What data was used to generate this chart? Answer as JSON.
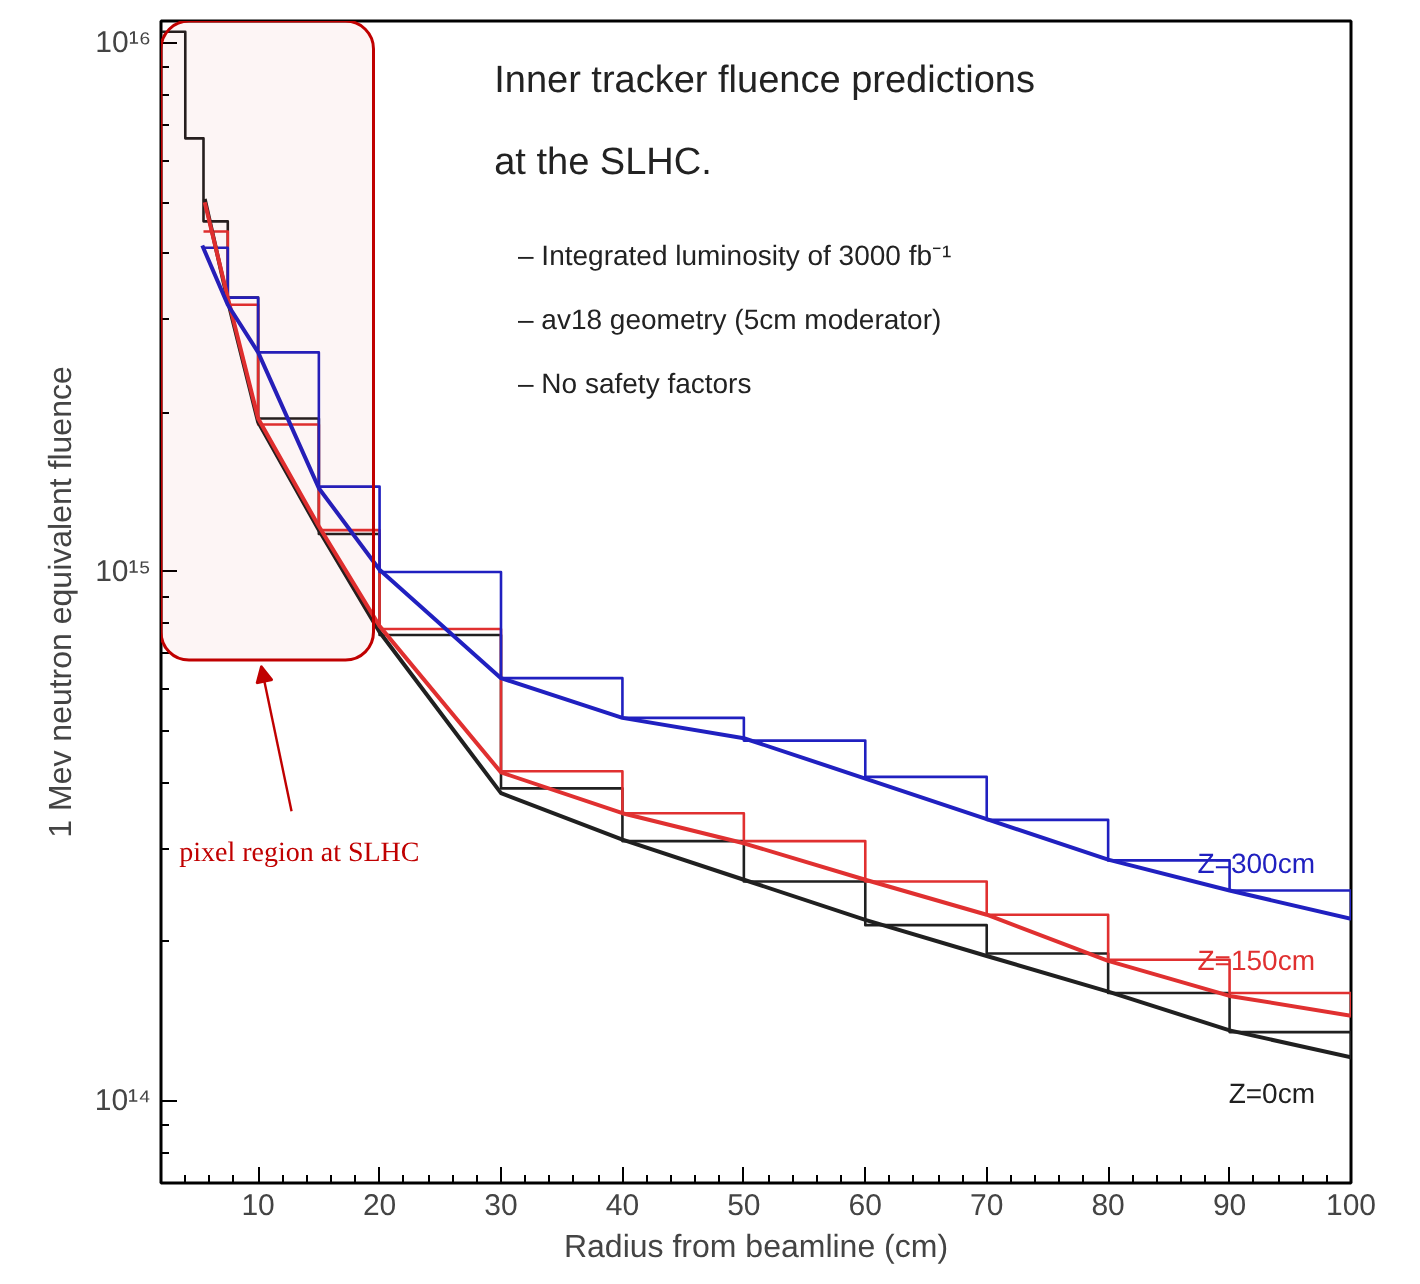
{
  "chart_data": {
    "type": "line",
    "title": "Inner tracker fluence predictions\nat the SLHC.",
    "xlabel": "Radius from beamline (cm)",
    "ylabel": "1 Mev neutron equivalent fluence",
    "annotations": [
      "– Integrated luminosity of 3000 fb⁻¹",
      "– av18 geometry (5cm moderator)",
      "– No safety factors"
    ],
    "log": "y",
    "grid": false,
    "line_style": "solid",
    "marker": "none",
    "xlim": [
      2,
      100
    ],
    "ylim": [
      70000000000000.0,
      1.1e+16
    ],
    "xticks": [
      10,
      20,
      30,
      40,
      50,
      60,
      70,
      80,
      90,
      100
    ],
    "yticks": [
      {
        "value": 100000000000000.0,
        "label": "10¹⁴"
      },
      {
        "value": 1000000000000000.0,
        "label": "10¹⁵"
      },
      {
        "value": 1e+16,
        "label": "10¹⁶"
      }
    ],
    "bands": [
      {
        "axis": "x",
        "from": 2,
        "to": 19.5,
        "label": "pixel region at SLHC",
        "color": "#c00000"
      }
    ],
    "series": [
      {
        "type": "step",
        "color": "#202020",
        "x": [
          2,
          4,
          5.5,
          7.5,
          10,
          15,
          20,
          30,
          40,
          50,
          60,
          70,
          80,
          90,
          100
        ],
        "values": [
          1.05e+16,
          6600000000000000.0,
          4600000000000000.0,
          3300000000000000.0,
          1950000000000000.0,
          1180000000000000.0,
          760000000000000.0,
          390000000000000.0,
          310000000000000.0,
          260000000000000.0,
          215000000000000.0,
          190000000000000.0,
          160000000000000.0,
          135000000000000.0,
          120000000000000.0
        ]
      },
      {
        "type": "step",
        "color": "#e03030",
        "x": [
          5.5,
          7.5,
          10,
          15,
          20,
          30,
          40,
          50,
          60,
          70,
          80,
          90,
          100
        ],
        "values": [
          4400000000000000.0,
          3200000000000000.0,
          1900000000000000.0,
          1200000000000000.0,
          780000000000000.0,
          420000000000000.0,
          350000000000000.0,
          310000000000000.0,
          260000000000000.0,
          225000000000000.0,
          185000000000000.0,
          160000000000000.0,
          145000000000000.0
        ]
      },
      {
        "type": "step",
        "color": "#2020c0",
        "x": [
          5.5,
          7.5,
          10,
          15,
          20,
          30,
          40,
          50,
          60,
          70,
          80,
          90,
          100
        ],
        "values": [
          4100000000000000.0,
          3300000000000000.0,
          2600000000000000.0,
          1450000000000000.0,
          1000000000000000.0,
          630000000000000.0,
          530000000000000.0,
          480000000000000.0,
          410000000000000.0,
          340000000000000.0,
          285000000000000.0,
          250000000000000.0,
          220000000000000.0
        ]
      },
      {
        "name": "Z=0cm",
        "color": "#202020",
        "x": [
          5.6,
          7.5,
          10,
          15,
          20,
          30,
          40,
          50,
          60,
          70,
          80,
          90,
          100
        ],
        "values": [
          5070000000000000.0,
          3260000000000000.0,
          1920000000000000.0,
          1200000000000000.0,
          770000000000000.0,
          382000000000000.0,
          312000000000000.0,
          262000000000000.0,
          220000000000000.0,
          188000000000000.0,
          161000000000000.0,
          136000000000000.0,
          121000000000000.0
        ]
      },
      {
        "name": "Z=150cm",
        "color": "#e03030",
        "x": [
          5.6,
          7.5,
          10,
          15,
          20,
          30,
          40,
          50,
          60,
          70,
          80,
          90,
          100
        ],
        "values": [
          5000000000000000.0,
          3300000000000000.0,
          1950000000000000.0,
          1220000000000000.0,
          790000000000000.0,
          418000000000000.0,
          350000000000000.0,
          307000000000000.0,
          262000000000000.0,
          225000000000000.0,
          184000000000000.0,
          158000000000000.0,
          145000000000000.0
        ]
      },
      {
        "name": "Z=300cm",
        "color": "#2020c0",
        "x": [
          5.4,
          7.5,
          10,
          15,
          20,
          30,
          40,
          50,
          60,
          70,
          80,
          90,
          100
        ],
        "values": [
          4140000000000000.0,
          3200000000000000.0,
          2600000000000000.0,
          1440000000000000.0,
          1010000000000000.0,
          630000000000000.0,
          530000000000000.0,
          485000000000000.0,
          407000000000000.0,
          341000000000000.0,
          286000000000000.0,
          250000000000000.0,
          221000000000000.0
        ]
      }
    ]
  }
}
